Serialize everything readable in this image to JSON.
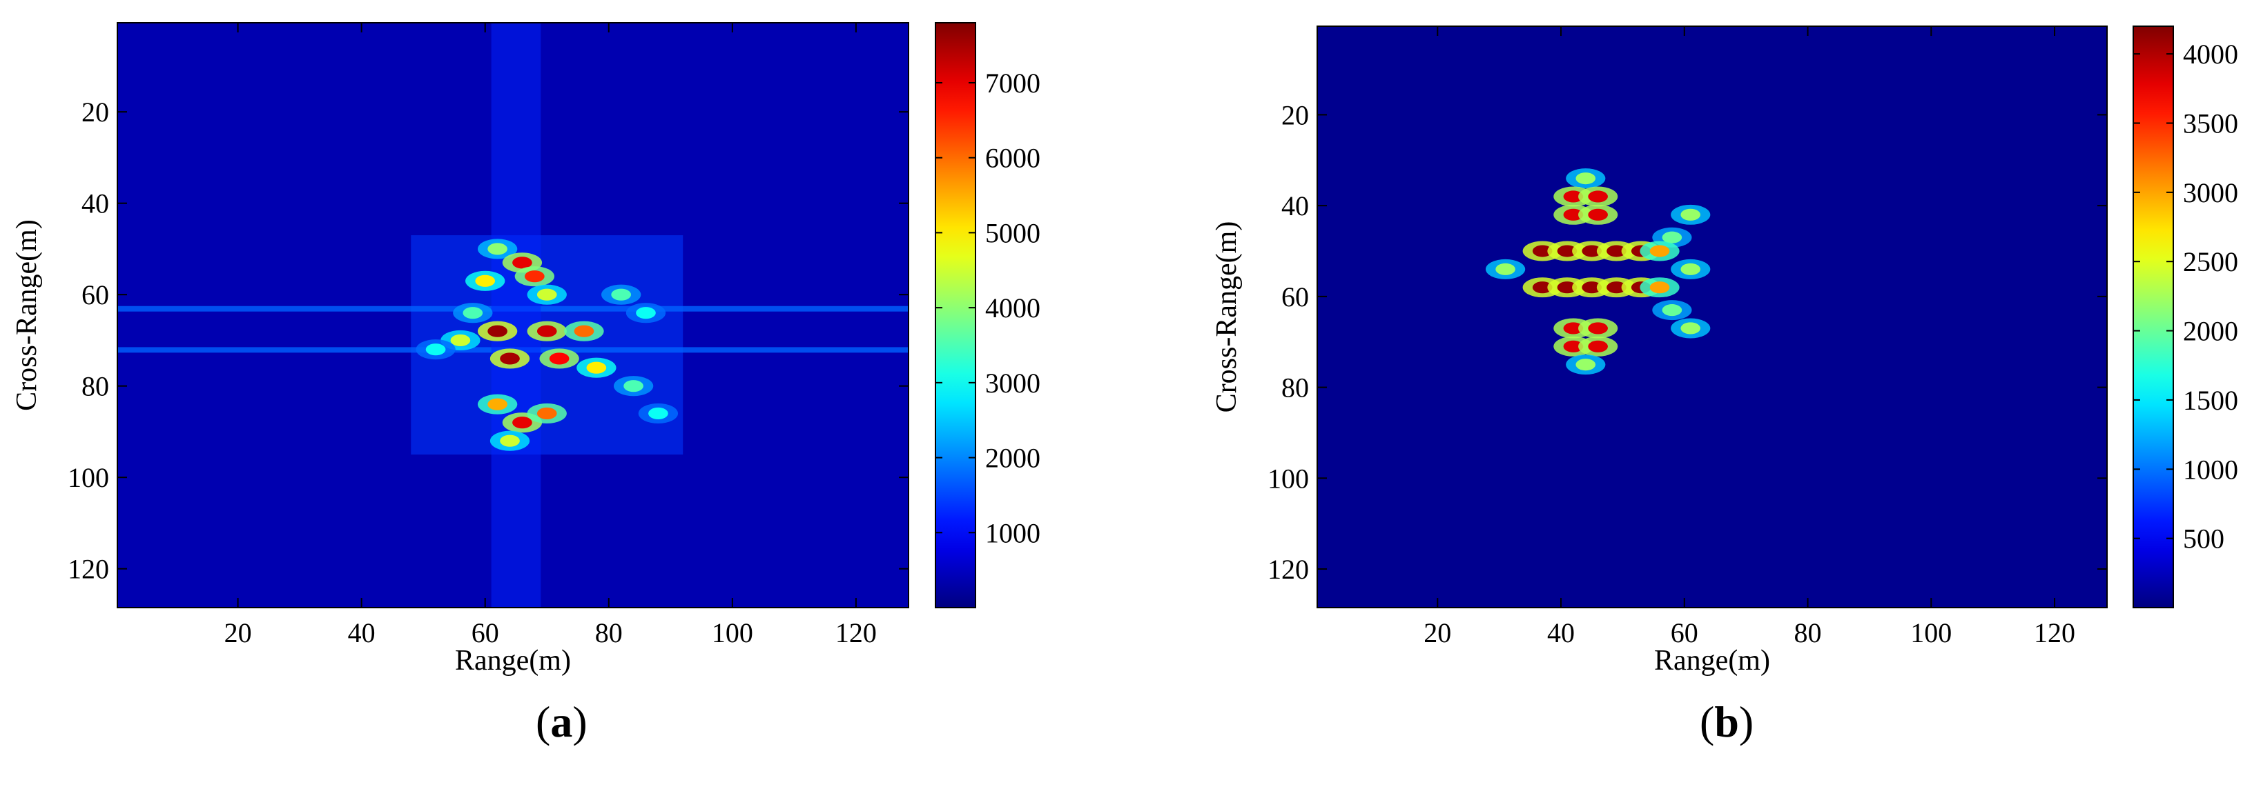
{
  "chart_data": [
    {
      "type": "heatmap",
      "panel_label": "a",
      "title": "",
      "xlabel": "Range(m)",
      "ylabel": "Cross-Range(m)",
      "xlim": [
        1,
        128
      ],
      "ylim": [
        1,
        128
      ],
      "y_reversed": true,
      "xticks": [
        20,
        40,
        60,
        80,
        100,
        120
      ],
      "yticks": [
        20,
        40,
        60,
        80,
        100,
        120
      ],
      "colormap": "jet",
      "colorbar": {
        "min": 0,
        "max": 7800,
        "ticks": [
          1000,
          2000,
          3000,
          4000,
          5000,
          6000,
          7000
        ]
      },
      "background_color": "#0000b0",
      "features": [
        {
          "kind": "target-cluster",
          "x_range": [
            48,
            92
          ],
          "y_range": [
            47,
            95
          ]
        },
        {
          "kind": "horizontal-streak",
          "y": 63,
          "x_range": [
            1,
            128
          ]
        },
        {
          "kind": "horizontal-streak",
          "y": 72,
          "x_range": [
            1,
            128
          ]
        },
        {
          "kind": "vertical-streak",
          "x": 65,
          "y_range": [
            1,
            128
          ]
        }
      ],
      "scatterers": [
        {
          "x": 62,
          "y": 50,
          "v": 4000
        },
        {
          "x": 66,
          "y": 53,
          "v": 7000
        },
        {
          "x": 68,
          "y": 56,
          "v": 6500
        },
        {
          "x": 60,
          "y": 57,
          "v": 5000
        },
        {
          "x": 70,
          "y": 60,
          "v": 4500
        },
        {
          "x": 58,
          "y": 64,
          "v": 3500
        },
        {
          "x": 62,
          "y": 68,
          "v": 7600
        },
        {
          "x": 70,
          "y": 68,
          "v": 7200
        },
        {
          "x": 76,
          "y": 68,
          "v": 6000
        },
        {
          "x": 56,
          "y": 70,
          "v": 4500
        },
        {
          "x": 64,
          "y": 74,
          "v": 7500
        },
        {
          "x": 72,
          "y": 74,
          "v": 6800
        },
        {
          "x": 78,
          "y": 76,
          "v": 5000
        },
        {
          "x": 82,
          "y": 60,
          "v": 3500
        },
        {
          "x": 86,
          "y": 64,
          "v": 3000
        },
        {
          "x": 84,
          "y": 80,
          "v": 3500
        },
        {
          "x": 88,
          "y": 86,
          "v": 3000
        },
        {
          "x": 62,
          "y": 84,
          "v": 5500
        },
        {
          "x": 66,
          "y": 88,
          "v": 7000
        },
        {
          "x": 70,
          "y": 86,
          "v": 6000
        },
        {
          "x": 64,
          "y": 92,
          "v": 4500
        },
        {
          "x": 52,
          "y": 72,
          "v": 3000
        }
      ]
    },
    {
      "type": "heatmap",
      "panel_label": "b",
      "title": "",
      "xlabel": "Range(m)",
      "ylabel": "Cross-Range(m)",
      "xlim": [
        1,
        128
      ],
      "ylim": [
        1,
        128
      ],
      "y_reversed": true,
      "xticks": [
        20,
        40,
        60,
        80,
        100,
        120
      ],
      "yticks": [
        20,
        40,
        60,
        80,
        100,
        120
      ],
      "colormap": "jet",
      "colorbar": {
        "min": 0,
        "max": 4200,
        "ticks": [
          500,
          1000,
          1500,
          2000,
          2500,
          3000,
          3500,
          4000
        ]
      },
      "background_color": "#00008f",
      "scatterers": [
        {
          "x": 44,
          "y": 34,
          "v": 2200
        },
        {
          "x": 42,
          "y": 38,
          "v": 3800
        },
        {
          "x": 46,
          "y": 38,
          "v": 3800
        },
        {
          "x": 42,
          "y": 42,
          "v": 3800
        },
        {
          "x": 46,
          "y": 42,
          "v": 3800
        },
        {
          "x": 61,
          "y": 42,
          "v": 2200
        },
        {
          "x": 58,
          "y": 47,
          "v": 2000
        },
        {
          "x": 37,
          "y": 50,
          "v": 4100
        },
        {
          "x": 41,
          "y": 50,
          "v": 4100
        },
        {
          "x": 45,
          "y": 50,
          "v": 4100
        },
        {
          "x": 49,
          "y": 50,
          "v": 4100
        },
        {
          "x": 53,
          "y": 50,
          "v": 4100
        },
        {
          "x": 56,
          "y": 50,
          "v": 3000
        },
        {
          "x": 31,
          "y": 54,
          "v": 2200
        },
        {
          "x": 61,
          "y": 54,
          "v": 2200
        },
        {
          "x": 37,
          "y": 58,
          "v": 4100
        },
        {
          "x": 41,
          "y": 58,
          "v": 4100
        },
        {
          "x": 45,
          "y": 58,
          "v": 4100
        },
        {
          "x": 49,
          "y": 58,
          "v": 4100
        },
        {
          "x": 53,
          "y": 58,
          "v": 4100
        },
        {
          "x": 56,
          "y": 58,
          "v": 3000
        },
        {
          "x": 58,
          "y": 63,
          "v": 2000
        },
        {
          "x": 61,
          "y": 67,
          "v": 2200
        },
        {
          "x": 42,
          "y": 67,
          "v": 3800
        },
        {
          "x": 46,
          "y": 67,
          "v": 3800
        },
        {
          "x": 42,
          "y": 71,
          "v": 3800
        },
        {
          "x": 46,
          "y": 71,
          "v": 3800
        },
        {
          "x": 44,
          "y": 75,
          "v": 2200
        }
      ]
    }
  ]
}
